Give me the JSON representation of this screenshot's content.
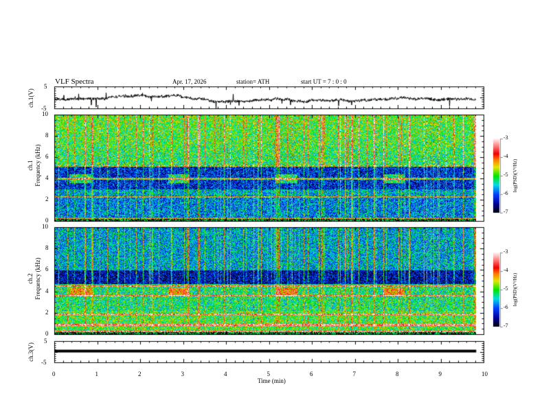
{
  "header": {
    "title": "VLF  Spectra",
    "date": "Apr. 17, 2026",
    "station": "station= ATH",
    "start": "start  UT  =   7  : 0  : 0"
  },
  "chart_data": [
    {
      "type": "line",
      "name": "ch1-waveform",
      "ylabel": "ch.1(V)",
      "ylim": [
        -5,
        5
      ],
      "yticks": [
        "5",
        "-5"
      ],
      "xlim": [
        0,
        10
      ],
      "baseline_level": -0.5,
      "noise_amplitude": 1.2
    },
    {
      "type": "heatmap",
      "name": "ch1-spectrogram",
      "ylabel": "ch.1\nFrequency (kHz)",
      "ylim": [
        0,
        10
      ],
      "yticks": [
        "0",
        "2",
        "4",
        "6",
        "8",
        "10"
      ],
      "xlim": [
        0,
        9.83
      ],
      "colorbar": {
        "label": "log(PSD)(V²/Hz)",
        "range": [
          -7,
          -3
        ],
        "ticks": [
          "-3",
          "-4",
          "-5",
          "-6",
          "-7"
        ]
      },
      "bands_kHz": [
        0.3,
        2.3,
        4.0,
        5.2
      ],
      "quiet_band_kHz": [
        3.0,
        5.0
      ],
      "bright_patches_min": [
        0.6,
        2.9,
        5.4,
        7.9
      ]
    },
    {
      "type": "heatmap",
      "name": "ch2-spectrogram",
      "ylabel": "ch.2\nFrequency (kHz)",
      "ylim": [
        0,
        10
      ],
      "yticks": [
        "0",
        "2",
        "4",
        "6",
        "8",
        "10"
      ],
      "xlim": [
        0,
        9.83
      ],
      "colorbar": {
        "label": "log(PSD)(V²/Hz)",
        "range": [
          -7,
          -3
        ],
        "ticks": [
          "-3",
          "-4",
          "-5",
          "-6",
          "-7"
        ]
      },
      "bands_kHz": [
        0.3,
        0.9,
        1.9,
        3.6,
        4.5
      ],
      "quiet_band_kHz": [
        4.7,
        6.0
      ],
      "bright_patches_min": [
        0.6,
        2.9,
        5.4,
        7.9
      ]
    },
    {
      "type": "line",
      "name": "ch3-waveform",
      "ylabel": "ch.3(V)",
      "ylim": [
        -5,
        5
      ],
      "yticks": [
        "5",
        "-5"
      ],
      "xlim": [
        0,
        10
      ],
      "baseline_level": 0.3,
      "noise_amplitude": 0.2
    }
  ],
  "xaxis": {
    "label": "Time  (min)",
    "ticks": [
      "0",
      "1",
      "2",
      "3",
      "4",
      "5",
      "6",
      "7",
      "8",
      "9",
      "10"
    ]
  }
}
